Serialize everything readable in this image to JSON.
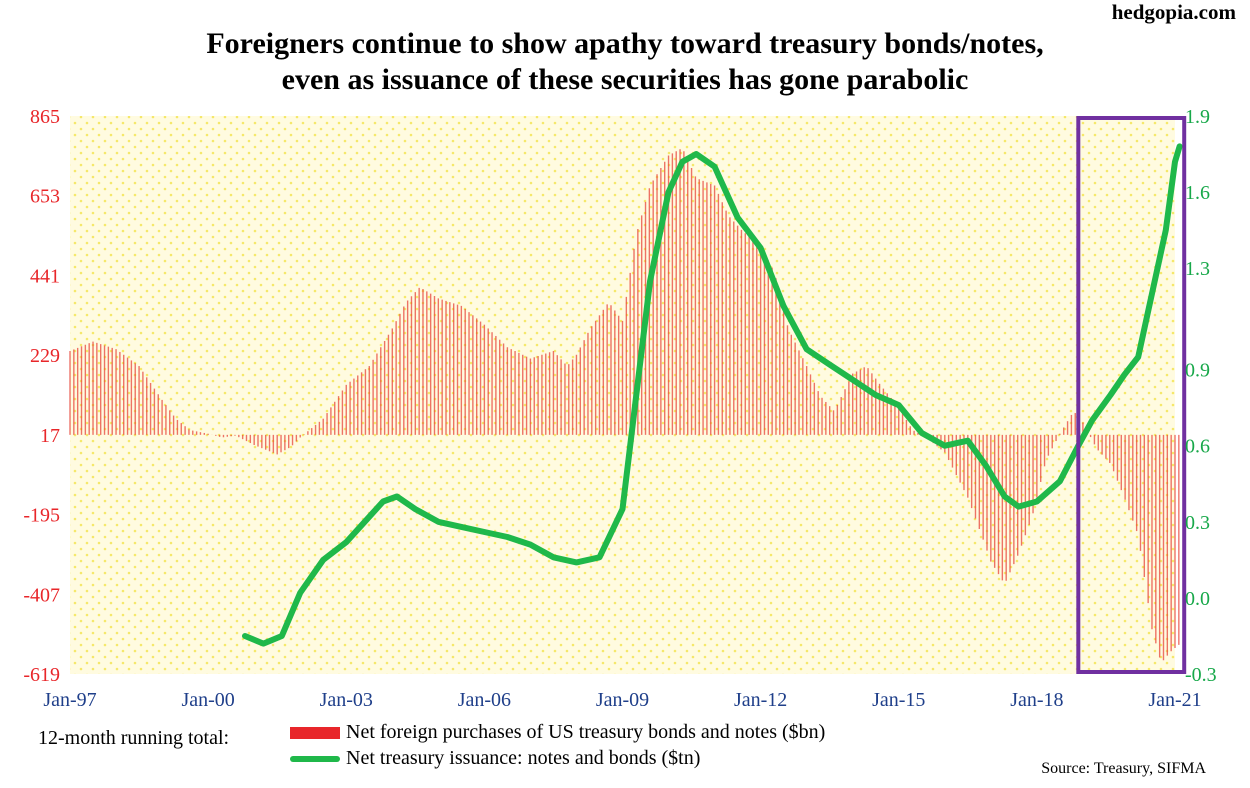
{
  "brand": "hedgopia.com",
  "title_line1": "Foreigners continue to show apathy toward treasury bonds/notes,",
  "title_line2": "even as issuance of these securities has gone parabolic",
  "legend": {
    "prefix": "12-month running total:",
    "bars_label": "Net foreign purchases of US treasury bonds and notes ($bn)",
    "line_label": "Net treasury issuance: notes and bonds ($tn)"
  },
  "source": "Source: Treasury, SIFMA",
  "colors": {
    "bars": "#e8463c",
    "line": "#1fb84a",
    "left_axis": "#e8262a",
    "right_axis": "#18a84a",
    "highlight_box": "#7030a0",
    "plot_bg": "#fffbe0",
    "dots": "#f5e86a"
  },
  "chart_data": {
    "type": "bar+line",
    "x_tick_labels": [
      "Jan-97",
      "Jan-00",
      "Jan-03",
      "Jan-06",
      "Jan-09",
      "Jan-12",
      "Jan-15",
      "Jan-18",
      "Jan-21"
    ],
    "x_range": [
      1997.0,
      2021.0
    ],
    "left_axis": {
      "ticks": [
        865,
        653,
        441,
        229,
        17,
        -195,
        -407,
        -619
      ],
      "ylim": [
        -619,
        865
      ],
      "units": "$bn"
    },
    "right_axis": {
      "ticks": [
        1.9,
        1.6,
        1.3,
        0.9,
        0.6,
        0.3,
        0.0,
        -0.3
      ],
      "ylim": [
        -0.3,
        1.9
      ],
      "units": "$tn"
    },
    "highlight_box": {
      "x_start": 2018.9,
      "x_end": 2021.2
    },
    "series": [
      {
        "name": "Net foreign purchases of US treasury bonds and notes ($bn)",
        "type": "bar",
        "axis": "left",
        "points": [
          [
            1997.0,
            240
          ],
          [
            1997.5,
            265
          ],
          [
            1998.0,
            245
          ],
          [
            1998.5,
            200
          ],
          [
            1999.0,
            110
          ],
          [
            1999.3,
            60
          ],
          [
            1999.6,
            30
          ],
          [
            2000.0,
            20
          ],
          [
            2000.3,
            10
          ],
          [
            2000.6,
            15
          ],
          [
            2001.0,
            -10
          ],
          [
            2001.5,
            -35
          ],
          [
            2001.8,
            -15
          ],
          [
            2002.0,
            10
          ],
          [
            2002.5,
            60
          ],
          [
            2003.0,
            150
          ],
          [
            2003.5,
            200
          ],
          [
            2004.0,
            300
          ],
          [
            2004.3,
            370
          ],
          [
            2004.6,
            410
          ],
          [
            2005.0,
            380
          ],
          [
            2005.5,
            360
          ],
          [
            2006.0,
            310
          ],
          [
            2006.5,
            250
          ],
          [
            2007.0,
            220
          ],
          [
            2007.5,
            240
          ],
          [
            2007.8,
            200
          ],
          [
            2008.0,
            230
          ],
          [
            2008.3,
            300
          ],
          [
            2008.7,
            370
          ],
          [
            2009.0,
            320
          ],
          [
            2009.3,
            550
          ],
          [
            2009.6,
            680
          ],
          [
            2010.0,
            760
          ],
          [
            2010.3,
            780
          ],
          [
            2010.6,
            700
          ],
          [
            2011.0,
            680
          ],
          [
            2011.3,
            600
          ],
          [
            2011.6,
            560
          ],
          [
            2012.0,
            520
          ],
          [
            2012.3,
            450
          ],
          [
            2012.6,
            300
          ],
          [
            2013.0,
            200
          ],
          [
            2013.3,
            120
          ],
          [
            2013.6,
            80
          ],
          [
            2014.0,
            180
          ],
          [
            2014.3,
            200
          ],
          [
            2014.6,
            150
          ],
          [
            2015.0,
            90
          ],
          [
            2015.3,
            30
          ],
          [
            2015.6,
            10
          ],
          [
            2016.0,
            -30
          ],
          [
            2016.5,
            -150
          ],
          [
            2016.8,
            -250
          ],
          [
            2017.0,
            -320
          ],
          [
            2017.3,
            -380
          ],
          [
            2017.6,
            -300
          ],
          [
            2017.9,
            -200
          ],
          [
            2018.2,
            -50
          ],
          [
            2018.5,
            20
          ],
          [
            2018.8,
            80
          ],
          [
            2019.0,
            50
          ],
          [
            2019.3,
            -20
          ],
          [
            2019.6,
            -60
          ],
          [
            2019.9,
            -150
          ],
          [
            2020.2,
            -250
          ],
          [
            2020.5,
            -500
          ],
          [
            2020.7,
            -590
          ],
          [
            2020.9,
            -560
          ],
          [
            2021.1,
            -540
          ]
        ]
      },
      {
        "name": "Net treasury issuance: notes and bonds ($tn)",
        "type": "line",
        "axis": "right",
        "points": [
          [
            2000.8,
            -0.15
          ],
          [
            2001.2,
            -0.18
          ],
          [
            2001.6,
            -0.15
          ],
          [
            2002.0,
            0.02
          ],
          [
            2002.5,
            0.15
          ],
          [
            2003.0,
            0.22
          ],
          [
            2003.4,
            0.3
          ],
          [
            2003.8,
            0.38
          ],
          [
            2004.1,
            0.4
          ],
          [
            2004.5,
            0.35
          ],
          [
            2005.0,
            0.3
          ],
          [
            2005.5,
            0.28
          ],
          [
            2006.0,
            0.26
          ],
          [
            2006.5,
            0.24
          ],
          [
            2007.0,
            0.21
          ],
          [
            2007.5,
            0.16
          ],
          [
            2008.0,
            0.14
          ],
          [
            2008.5,
            0.16
          ],
          [
            2009.0,
            0.35
          ],
          [
            2009.3,
            0.8
          ],
          [
            2009.6,
            1.25
          ],
          [
            2010.0,
            1.6
          ],
          [
            2010.3,
            1.72
          ],
          [
            2010.6,
            1.75
          ],
          [
            2011.0,
            1.7
          ],
          [
            2011.5,
            1.5
          ],
          [
            2012.0,
            1.38
          ],
          [
            2012.5,
            1.15
          ],
          [
            2013.0,
            0.98
          ],
          [
            2013.5,
            0.92
          ],
          [
            2014.0,
            0.86
          ],
          [
            2014.5,
            0.8
          ],
          [
            2015.0,
            0.76
          ],
          [
            2015.5,
            0.65
          ],
          [
            2016.0,
            0.6
          ],
          [
            2016.5,
            0.62
          ],
          [
            2016.9,
            0.52
          ],
          [
            2017.3,
            0.4
          ],
          [
            2017.6,
            0.36
          ],
          [
            2018.0,
            0.38
          ],
          [
            2018.5,
            0.46
          ],
          [
            2018.9,
            0.6
          ],
          [
            2019.2,
            0.7
          ],
          [
            2019.6,
            0.8
          ],
          [
            2019.9,
            0.88
          ],
          [
            2020.2,
            0.95
          ],
          [
            2020.5,
            1.2
          ],
          [
            2020.8,
            1.45
          ],
          [
            2021.0,
            1.72
          ],
          [
            2021.1,
            1.78
          ]
        ]
      }
    ]
  }
}
